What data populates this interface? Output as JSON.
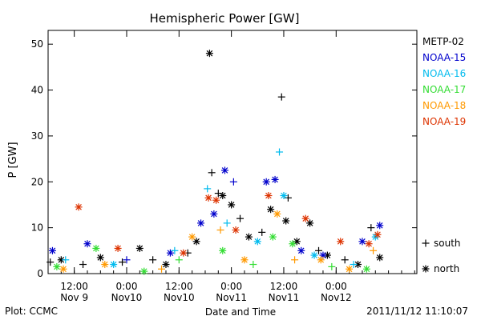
{
  "chart_data": {
    "type": "scatter",
    "title": "Hemispheric Power [GW]",
    "ylabel": "P [GW]",
    "xlabel": "Date and Time",
    "ylim": [
      0,
      53
    ],
    "yticks": [
      0,
      10,
      20,
      30,
      40,
      50
    ],
    "xlim": [
      "2011-11-09T06:00",
      "2011-11-12T18:30"
    ],
    "xticks": [
      {
        "time": "2011-11-09T12:00",
        "line1": "12:00",
        "line2": "Nov 9"
      },
      {
        "time": "2011-11-10T00:00",
        "line1": "0:00",
        "line2": "Nov10"
      },
      {
        "time": "2011-11-10T12:00",
        "line1": "12:00",
        "line2": "Nov10"
      },
      {
        "time": "2011-11-11T00:00",
        "line1": "0:00",
        "line2": "Nov11"
      },
      {
        "time": "2011-11-11T12:00",
        "line1": "12:00",
        "line2": "Nov11"
      },
      {
        "time": "2011-11-12T00:00",
        "line1": "0:00",
        "line2": "Nov12"
      }
    ],
    "legend_placement": "right",
    "markers": [
      {
        "symbol": "+",
        "label": "south"
      },
      {
        "symbol": "*",
        "label": "north"
      }
    ],
    "series": [
      {
        "name": "METP-02",
        "color": "#000000",
        "points": [
          {
            "t": "2011-11-09T06:30",
            "v": 2.5,
            "m": "+"
          },
          {
            "t": "2011-11-09T09:00",
            "v": 3.0,
            "m": "*"
          },
          {
            "t": "2011-11-09T14:00",
            "v": 2.0,
            "m": "+"
          },
          {
            "t": "2011-11-09T18:00",
            "v": 3.5,
            "m": "*"
          },
          {
            "t": "2011-11-09T23:00",
            "v": 2.5,
            "m": "+"
          },
          {
            "t": "2011-11-10T03:00",
            "v": 5.5,
            "m": "*"
          },
          {
            "t": "2011-11-10T06:00",
            "v": 3.0,
            "m": "+"
          },
          {
            "t": "2011-11-10T09:00",
            "v": 2.0,
            "m": "*"
          },
          {
            "t": "2011-11-10T14:00",
            "v": 4.5,
            "m": "+"
          },
          {
            "t": "2011-11-10T16:00",
            "v": 7.0,
            "m": "*"
          },
          {
            "t": "2011-11-10T19:00",
            "v": 48.0,
            "m": "*"
          },
          {
            "t": "2011-11-10T19:30",
            "v": 22.0,
            "m": "+"
          },
          {
            "t": "2011-11-10T21:00",
            "v": 17.5,
            "m": "+"
          },
          {
            "t": "2011-11-10T22:00",
            "v": 17.0,
            "m": "*"
          },
          {
            "t": "2011-11-11T00:00",
            "v": 15.0,
            "m": "*"
          },
          {
            "t": "2011-11-11T02:00",
            "v": 12.0,
            "m": "+"
          },
          {
            "t": "2011-11-11T04:00",
            "v": 8.0,
            "m": "*"
          },
          {
            "t": "2011-11-11T07:00",
            "v": 9.0,
            "m": "+"
          },
          {
            "t": "2011-11-11T09:00",
            "v": 14.0,
            "m": "*"
          },
          {
            "t": "2011-11-11T11:30",
            "v": 38.5,
            "m": "+"
          },
          {
            "t": "2011-11-11T12:30",
            "v": 11.5,
            "m": "*"
          },
          {
            "t": "2011-11-11T13:00",
            "v": 16.5,
            "m": "+"
          },
          {
            "t": "2011-11-11T15:00",
            "v": 7.0,
            "m": "*"
          },
          {
            "t": "2011-11-11T18:00",
            "v": 11.0,
            "m": "*"
          },
          {
            "t": "2011-11-11T20:00",
            "v": 5.0,
            "m": "+"
          },
          {
            "t": "2011-11-11T22:00",
            "v": 4.0,
            "m": "*"
          },
          {
            "t": "2011-11-12T02:00",
            "v": 3.0,
            "m": "+"
          },
          {
            "t": "2011-11-12T05:00",
            "v": 2.0,
            "m": "*"
          },
          {
            "t": "2011-11-12T08:00",
            "v": 10.0,
            "m": "+"
          },
          {
            "t": "2011-11-12T10:00",
            "v": 3.5,
            "m": "*"
          }
        ]
      },
      {
        "name": "NOAA-15",
        "color": "#0000cc",
        "points": [
          {
            "t": "2011-11-09T07:00",
            "v": 5.0,
            "m": "*"
          },
          {
            "t": "2011-11-09T15:00",
            "v": 6.5,
            "m": "*"
          },
          {
            "t": "2011-11-10T00:00",
            "v": 3.0,
            "m": "+"
          },
          {
            "t": "2011-11-10T10:00",
            "v": 4.5,
            "m": "*"
          },
          {
            "t": "2011-11-10T17:00",
            "v": 11.0,
            "m": "*"
          },
          {
            "t": "2011-11-10T20:00",
            "v": 13.0,
            "m": "*"
          },
          {
            "t": "2011-11-10T22:30",
            "v": 22.5,
            "m": "*"
          },
          {
            "t": "2011-11-11T00:30",
            "v": 20.0,
            "m": "+"
          },
          {
            "t": "2011-11-11T08:00",
            "v": 20.0,
            "m": "*"
          },
          {
            "t": "2011-11-11T10:00",
            "v": 20.5,
            "m": "*"
          },
          {
            "t": "2011-11-11T16:00",
            "v": 5.0,
            "m": "*"
          },
          {
            "t": "2011-11-11T21:00",
            "v": 4.0,
            "m": "*"
          },
          {
            "t": "2011-11-12T06:00",
            "v": 7.0,
            "m": "*"
          },
          {
            "t": "2011-11-12T10:00",
            "v": 10.5,
            "m": "*"
          }
        ]
      },
      {
        "name": "NOAA-16",
        "color": "#00bbee",
        "points": [
          {
            "t": "2011-11-09T10:00",
            "v": 3.0,
            "m": "+"
          },
          {
            "t": "2011-11-09T21:00",
            "v": 2.0,
            "m": "*"
          },
          {
            "t": "2011-11-10T11:00",
            "v": 5.0,
            "m": "+"
          },
          {
            "t": "2011-11-10T18:30",
            "v": 18.5,
            "m": "+"
          },
          {
            "t": "2011-11-10T23:00",
            "v": 11.0,
            "m": "+"
          },
          {
            "t": "2011-11-11T06:00",
            "v": 7.0,
            "m": "*"
          },
          {
            "t": "2011-11-11T11:00",
            "v": 26.5,
            "m": "+"
          },
          {
            "t": "2011-11-11T12:00",
            "v": 17.0,
            "m": "*"
          },
          {
            "t": "2011-11-11T19:00",
            "v": 4.0,
            "m": "*"
          },
          {
            "t": "2011-11-12T04:00",
            "v": 2.0,
            "m": "+"
          },
          {
            "t": "2011-11-12T09:00",
            "v": 8.0,
            "m": "*"
          }
        ]
      },
      {
        "name": "NOAA-17",
        "color": "#33dd33",
        "points": [
          {
            "t": "2011-11-09T08:00",
            "v": 1.5,
            "m": "*"
          },
          {
            "t": "2011-11-09T17:00",
            "v": 5.5,
            "m": "*"
          },
          {
            "t": "2011-11-10T04:00",
            "v": 0.5,
            "m": "*"
          },
          {
            "t": "2011-11-10T12:00",
            "v": 3.0,
            "m": "+"
          },
          {
            "t": "2011-11-10T22:00",
            "v": 5.0,
            "m": "*"
          },
          {
            "t": "2011-11-11T05:00",
            "v": 2.0,
            "m": "+"
          },
          {
            "t": "2011-11-11T09:30",
            "v": 8.0,
            "m": "*"
          },
          {
            "t": "2011-11-11T14:00",
            "v": 6.5,
            "m": "*"
          },
          {
            "t": "2011-11-11T23:00",
            "v": 1.5,
            "m": "+"
          },
          {
            "t": "2011-11-12T07:00",
            "v": 1.0,
            "m": "*"
          }
        ]
      },
      {
        "name": "NOAA-18",
        "color": "#ff9900",
        "points": [
          {
            "t": "2011-11-09T09:30",
            "v": 1.0,
            "m": "*"
          },
          {
            "t": "2011-11-09T19:00",
            "v": 2.0,
            "m": "*"
          },
          {
            "t": "2011-11-10T08:00",
            "v": 1.0,
            "m": "+"
          },
          {
            "t": "2011-11-10T15:00",
            "v": 8.0,
            "m": "*"
          },
          {
            "t": "2011-11-10T21:30",
            "v": 9.5,
            "m": "+"
          },
          {
            "t": "2011-11-11T03:00",
            "v": 3.0,
            "m": "*"
          },
          {
            "t": "2011-11-11T10:30",
            "v": 13.0,
            "m": "*"
          },
          {
            "t": "2011-11-11T14:30",
            "v": 3.0,
            "m": "+"
          },
          {
            "t": "2011-11-11T20:30",
            "v": 3.0,
            "m": "*"
          },
          {
            "t": "2011-11-12T03:00",
            "v": 1.0,
            "m": "*"
          },
          {
            "t": "2011-11-12T08:30",
            "v": 5.0,
            "m": "+"
          }
        ]
      },
      {
        "name": "NOAA-19",
        "color": "#dd3300",
        "points": [
          {
            "t": "2011-11-09T13:00",
            "v": 14.5,
            "m": "*"
          },
          {
            "t": "2011-11-09T22:00",
            "v": 5.5,
            "m": "*"
          },
          {
            "t": "2011-11-10T13:00",
            "v": 4.5,
            "m": "*"
          },
          {
            "t": "2011-11-10T18:45",
            "v": 16.5,
            "m": "*"
          },
          {
            "t": "2011-11-10T20:30",
            "v": 16.0,
            "m": "*"
          },
          {
            "t": "2011-11-11T01:00",
            "v": 9.5,
            "m": "*"
          },
          {
            "t": "2011-11-11T08:30",
            "v": 17.0,
            "m": "*"
          },
          {
            "t": "2011-11-11T17:00",
            "v": 12.0,
            "m": "*"
          },
          {
            "t": "2011-11-12T01:00",
            "v": 7.0,
            "m": "*"
          },
          {
            "t": "2011-11-12T07:30",
            "v": 6.5,
            "m": "*"
          },
          {
            "t": "2011-11-12T09:30",
            "v": 8.5,
            "m": "*"
          }
        ]
      }
    ]
  },
  "footer": {
    "left": "Plot: CCMC",
    "right": "2011/11/12 11:10:07"
  }
}
